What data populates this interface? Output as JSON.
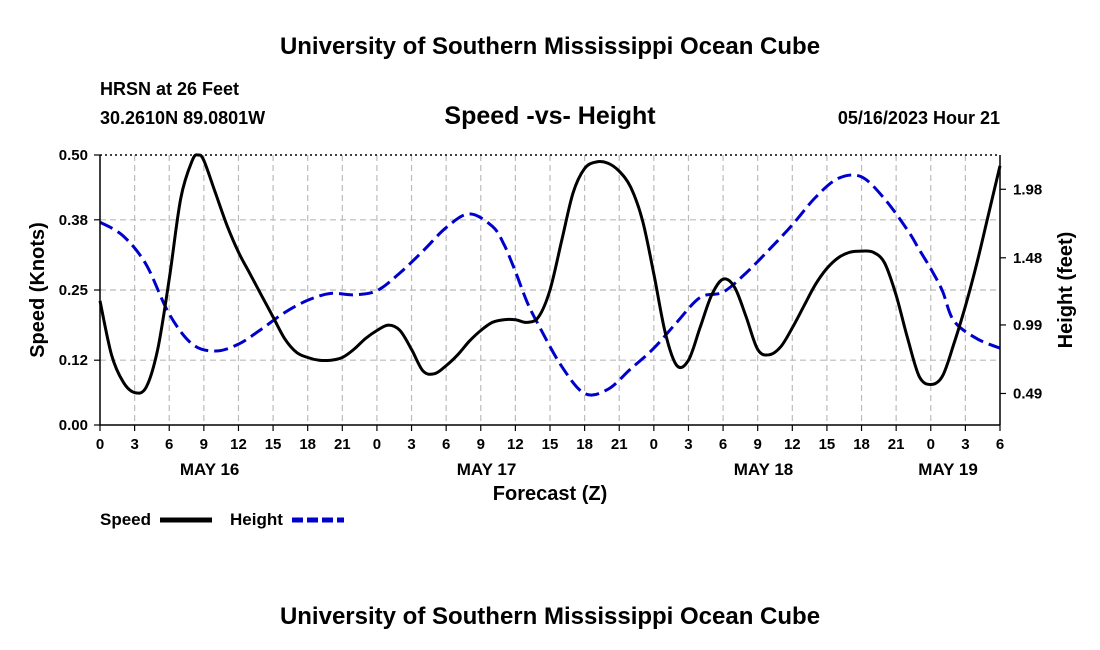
{
  "header": {
    "title": "University of Southern Mississippi Ocean Cube",
    "station": "HRSN at 26 Feet",
    "coords": "30.2610N  89.0801W",
    "subtitle": "Speed -vs- Height",
    "timestamp": "05/16/2023 Hour 21"
  },
  "footer": {
    "title": "University of Southern Mississippi Ocean Cube"
  },
  "chart_data": {
    "type": "line",
    "title": "Speed -vs- Height",
    "xlabel": "Forecast (Z)",
    "ylabel": "Speed (Knots)",
    "y2label": "Height (feet)",
    "xlim": [
      0,
      78
    ],
    "ylim": [
      0,
      0.5
    ],
    "y2lim": [
      0.26,
      2.23
    ],
    "yticks": [
      "0.00",
      "0.12",
      "0.25",
      "0.38",
      "0.50"
    ],
    "y2ticks": [
      "0.49",
      "0.99",
      "1.48",
      "1.98"
    ],
    "xtick_labels": [
      "0",
      "3",
      "6",
      "9",
      "12",
      "15",
      "18",
      "21",
      "0",
      "3",
      "6",
      "9",
      "12",
      "15",
      "18",
      "21",
      "0",
      "3",
      "6",
      "9",
      "12",
      "15",
      "18",
      "21",
      "0",
      "3",
      "6"
    ],
    "date_labels": [
      {
        "label": "MAY 16",
        "hour": 9.5
      },
      {
        "label": "MAY 17",
        "hour": 33.5
      },
      {
        "label": "MAY 18",
        "hour": 57.5
      },
      {
        "label": "MAY 19",
        "hour": 73.5
      }
    ],
    "legend": {
      "position": "bottom-left",
      "entries": [
        {
          "label": "Speed",
          "color": "#000000",
          "style": "solid"
        },
        {
          "label": "Height",
          "color": "#0000cc",
          "style": "dashed"
        }
      ]
    },
    "series": [
      {
        "name": "Speed",
        "axis": "left",
        "color": "#000000",
        "style": "solid",
        "x": [
          0,
          1,
          2,
          3,
          4,
          5,
          6,
          7,
          8,
          8.5,
          9,
          10,
          11,
          12,
          13,
          14,
          15,
          16,
          17,
          18,
          19,
          20,
          21,
          22,
          23,
          24,
          25,
          26,
          27,
          28,
          29,
          30,
          31,
          32,
          33,
          34,
          35,
          36,
          37,
          38,
          39,
          40,
          41,
          42,
          43,
          44,
          45,
          46,
          47,
          48,
          49,
          50,
          51,
          52,
          53,
          54,
          55,
          56,
          57,
          58,
          59,
          60,
          61,
          62,
          63,
          64,
          65,
          66,
          67,
          68,
          69,
          70,
          71,
          72,
          73,
          74,
          75,
          76,
          77,
          78
        ],
        "values": [
          0.23,
          0.13,
          0.08,
          0.06,
          0.07,
          0.14,
          0.27,
          0.42,
          0.49,
          0.5,
          0.49,
          0.43,
          0.37,
          0.32,
          0.28,
          0.24,
          0.2,
          0.16,
          0.135,
          0.125,
          0.12,
          0.12,
          0.125,
          0.14,
          0.16,
          0.175,
          0.185,
          0.175,
          0.14,
          0.1,
          0.095,
          0.11,
          0.13,
          0.155,
          0.175,
          0.19,
          0.195,
          0.195,
          0.19,
          0.2,
          0.25,
          0.34,
          0.43,
          0.475,
          0.487,
          0.485,
          0.47,
          0.44,
          0.38,
          0.28,
          0.17,
          0.11,
          0.12,
          0.18,
          0.24,
          0.27,
          0.255,
          0.2,
          0.14,
          0.13,
          0.145,
          0.18,
          0.22,
          0.26,
          0.29,
          0.31,
          0.32,
          0.322,
          0.32,
          0.3,
          0.24,
          0.16,
          0.09,
          0.075,
          0.09,
          0.15,
          0.22,
          0.3,
          0.39,
          0.48
        ]
      },
      {
        "name": "Height",
        "axis": "right",
        "color": "#0000cc",
        "style": "dashed",
        "x": [
          0,
          2,
          4,
          6,
          8,
          10,
          12,
          14,
          16,
          18,
          20,
          22,
          24,
          26,
          28,
          30,
          32,
          34,
          35,
          36,
          37,
          38,
          40,
          42,
          44,
          46,
          48,
          50,
          52,
          54,
          56,
          58,
          60,
          62,
          64,
          66,
          68,
          70,
          71,
          72,
          73,
          74,
          76,
          78
        ],
        "values": [
          1.74,
          1.64,
          1.43,
          1.07,
          0.85,
          0.8,
          0.85,
          0.96,
          1.08,
          1.17,
          1.22,
          1.21,
          1.24,
          1.37,
          1.53,
          1.7,
          1.8,
          1.71,
          1.58,
          1.38,
          1.16,
          0.99,
          0.69,
          0.49,
          0.52,
          0.67,
          0.82,
          1.01,
          1.19,
          1.23,
          1.37,
          1.54,
          1.72,
          1.92,
          2.06,
          2.07,
          1.91,
          1.68,
          1.54,
          1.4,
          1.24,
          1.02,
          0.89,
          0.82
        ]
      }
    ]
  }
}
